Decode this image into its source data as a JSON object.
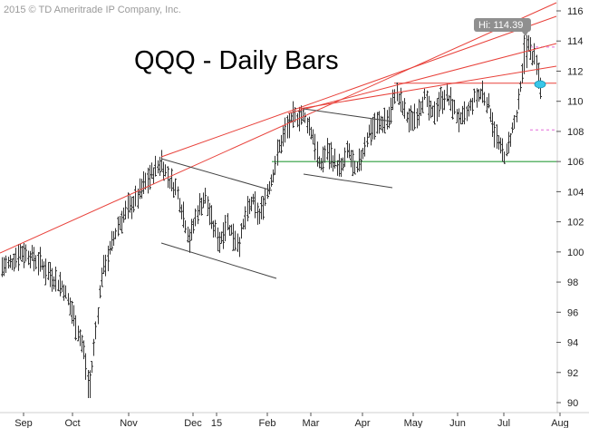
{
  "copyright": "2015 © TD Ameritrade IP Company, Inc.",
  "chart_data": {
    "type": "ohlc",
    "title": "QQQ - Daily Bars",
    "x_tick_labels": [
      "Sep",
      "Oct",
      "Nov",
      "Dec",
      "15",
      "Feb",
      "Mar",
      "Apr",
      "May",
      "Jun",
      "Jul",
      "Aug"
    ],
    "y_tick_labels": [
      "90",
      "92",
      "94",
      "96",
      "98",
      "100",
      "102",
      "104",
      "106",
      "108",
      "110",
      "112",
      "114",
      "116"
    ],
    "ylim": [
      89.6,
      116.3
    ],
    "grid": false,
    "hi_label": "Hi: 114.39",
    "colors": {
      "bars": "#333333",
      "trendline": "#e8413a",
      "channel": "#444444",
      "support": "#2e9e3e",
      "dashed": "#e36ad8",
      "marker": "#39c6e8"
    },
    "key_points": [
      {
        "date": "Sep 2014",
        "close": 99.1
      },
      {
        "date": "Oct 16 2014",
        "low": 90.3
      },
      {
        "date": "Nov 28 2014",
        "high": 106.3
      },
      {
        "date": "Dec 16 2014",
        "low": 99.7
      },
      {
        "date": "Jan 14 2015",
        "low": 99.3
      },
      {
        "date": "Mar 2 2015",
        "high": 109.4
      },
      {
        "date": "Mar 11 2015",
        "low": 104.6
      },
      {
        "date": "Apr 27 2015",
        "high": 111.3
      },
      {
        "date": "Jul 8 2015",
        "low": 105.9
      },
      {
        "date": "Jul 20 2015",
        "high": 114.39
      },
      {
        "date": "Jul 24 2015",
        "close": 111.2
      }
    ],
    "reference_lines": [
      {
        "kind": "support",
        "value": 106.0
      },
      {
        "kind": "resistance",
        "value": 111.2
      },
      {
        "kind": "dashed",
        "value": 113.6
      },
      {
        "kind": "dashed",
        "value": 108.1
      }
    ]
  }
}
